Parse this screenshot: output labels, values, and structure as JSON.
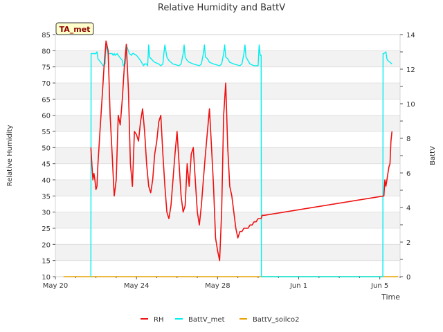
{
  "chart_data": {
    "type": "line",
    "title": "Relative Humidity and BattV",
    "xlabel": "Time",
    "ylabel": "Relative Humidity",
    "y2label": "BattV",
    "badge": "TA_met",
    "x_range_days": [
      0,
      17
    ],
    "ylim": [
      10,
      85
    ],
    "y2lim": [
      0,
      14
    ],
    "x_ticks": [
      {
        "day": 0,
        "label": "May 20"
      },
      {
        "day": 4,
        "label": "May 24"
      },
      {
        "day": 8,
        "label": "May 28"
      },
      {
        "day": 12,
        "label": "Jun 1"
      },
      {
        "day": 16,
        "label": "Jun 5"
      }
    ],
    "y_ticks": [
      10,
      15,
      20,
      25,
      30,
      35,
      40,
      45,
      50,
      55,
      60,
      65,
      70,
      75,
      80,
      85
    ],
    "y2_ticks": [
      0,
      2,
      4,
      6,
      8,
      10,
      12,
      14
    ],
    "grid": true,
    "legend_position": "bottom",
    "series": [
      {
        "name": "RH",
        "axis": "left",
        "color": "#ee1111",
        "x_days": [
          1.75,
          1.8,
          1.85,
          1.9,
          1.95,
          2.0,
          2.05,
          2.1,
          2.15,
          2.2,
          2.3,
          2.4,
          2.5,
          2.6,
          2.7,
          2.8,
          2.9,
          3.0,
          3.1,
          3.2,
          3.3,
          3.4,
          3.5,
          3.6,
          3.7,
          3.8,
          3.9,
          4.0,
          4.1,
          4.2,
          4.3,
          4.4,
          4.5,
          4.6,
          4.7,
          4.8,
          4.9,
          5.0,
          5.1,
          5.2,
          5.3,
          5.4,
          5.5,
          5.6,
          5.7,
          5.8,
          5.9,
          6.0,
          6.1,
          6.2,
          6.3,
          6.4,
          6.5,
          6.6,
          6.7,
          6.8,
          6.9,
          7.0,
          7.1,
          7.2,
          7.3,
          7.4,
          7.5,
          7.6,
          7.7,
          7.8,
          7.9,
          8.0,
          8.1,
          8.2,
          8.3,
          8.4,
          8.5,
          8.6,
          8.7,
          8.8,
          8.9,
          9.0,
          9.1,
          9.2,
          9.3,
          9.4,
          9.5,
          9.6,
          9.7,
          9.8,
          9.9,
          10.0,
          10.05,
          10.1,
          10.15,
          10.2,
          10.3,
          16.2,
          16.25,
          16.3,
          16.35,
          16.4,
          16.45,
          16.5,
          16.55,
          16.6
        ],
        "y": [
          50,
          45,
          40,
          42,
          40,
          37,
          38,
          45,
          50,
          55,
          65,
          75,
          83,
          80,
          60,
          48,
          35,
          40,
          60,
          57,
          65,
          75,
          82,
          68,
          45,
          38,
          55,
          54,
          52,
          58,
          62,
          55,
          45,
          38,
          36,
          40,
          48,
          52,
          58,
          60,
          48,
          38,
          30,
          28,
          32,
          40,
          48,
          55,
          45,
          35,
          30,
          32,
          45,
          38,
          48,
          50,
          40,
          30,
          26,
          32,
          40,
          48,
          55,
          62,
          50,
          38,
          22,
          18,
          15,
          30,
          60,
          70,
          50,
          38,
          35,
          30,
          25,
          22,
          24,
          24,
          25,
          25,
          25,
          26,
          26,
          27,
          27,
          28,
          28,
          28,
          28,
          29,
          29,
          35,
          40,
          38,
          40,
          42,
          44,
          45,
          52,
          55
        ]
      },
      {
        "name": "BattV_met",
        "axis": "right",
        "color": "#00eeee",
        "x_days": [
          1.75,
          1.76,
          1.8,
          2.0,
          2.05,
          2.1,
          2.3,
          2.35,
          2.45,
          2.5,
          2.6,
          2.8,
          2.85,
          2.9,
          2.95,
          3.05,
          3.1,
          3.3,
          3.35,
          3.45,
          3.5,
          3.65,
          3.75,
          3.8,
          3.85,
          4.0,
          4.2,
          4.3,
          4.35,
          4.4,
          4.5,
          4.55,
          4.6,
          4.65,
          4.8,
          4.9,
          5.1,
          5.2,
          5.3,
          5.35,
          5.4,
          5.5,
          5.6,
          5.8,
          6.1,
          6.2,
          6.3,
          6.35,
          6.4,
          6.5,
          6.6,
          6.8,
          7.1,
          7.2,
          7.3,
          7.35,
          7.4,
          7.5,
          7.6,
          7.8,
          8.1,
          8.2,
          8.3,
          8.35,
          8.4,
          8.5,
          8.6,
          8.8,
          9.1,
          9.2,
          9.3,
          9.35,
          9.4,
          9.5,
          9.6,
          9.8,
          10.0,
          10.05,
          10.1,
          10.15,
          10.16,
          16.15,
          16.16,
          16.2,
          16.3,
          16.35,
          16.4,
          16.5,
          16.6
        ],
        "y": [
          0,
          12.9,
          12.9,
          12.9,
          13.0,
          12.6,
          12.3,
          12.2,
          12.3,
          13.4,
          12.9,
          12.9,
          12.8,
          12.9,
          12.8,
          12.9,
          12.8,
          12.5,
          12.2,
          12.3,
          13.4,
          12.9,
          12.8,
          12.9,
          12.9,
          12.8,
          12.5,
          12.3,
          12.2,
          12.3,
          12.3,
          12.2,
          13.4,
          12.7,
          12.5,
          12.4,
          12.3,
          12.2,
          12.3,
          12.9,
          13.4,
          12.7,
          12.5,
          12.3,
          12.2,
          12.3,
          12.9,
          13.4,
          12.7,
          12.5,
          12.4,
          12.3,
          12.2,
          12.3,
          12.9,
          13.4,
          12.7,
          12.6,
          12.4,
          12.3,
          12.2,
          12.3,
          12.9,
          13.4,
          12.7,
          12.6,
          12.4,
          12.3,
          12.2,
          12.3,
          12.9,
          13.4,
          12.7,
          12.5,
          12.3,
          12.2,
          12.2,
          13.4,
          12.8,
          12.8,
          0,
          0,
          12.9,
          12.9,
          13.0,
          12.6,
          12.5,
          12.4,
          12.3
        ]
      },
      {
        "name": "BattV_soilco2",
        "axis": "right",
        "color": "#e8a200",
        "x_days": [
          0.4,
          16.9
        ],
        "y": [
          0,
          0
        ]
      }
    ]
  }
}
